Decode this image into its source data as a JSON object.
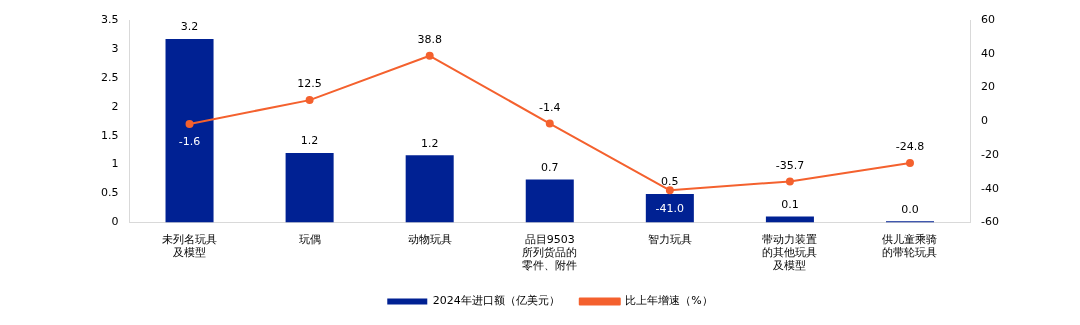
{
  "chart_data": {
    "type": "bar",
    "categories": [
      "未列名玩具及模型",
      "玩偶",
      "动物玩具",
      "品目9503所列货品的零件、附件",
      "智力玩具",
      "带动力装置的其他玩具及模型",
      "供儿童乘骑的带轮玩具"
    ],
    "series": [
      {
        "name": "2024年进口额（亿美元）",
        "color": "#002193",
        "values": [
          3.17,
          1.2,
          1.16,
          0.74,
          0.49,
          0.1,
          0.02
        ],
        "value_labels": [
          "3.2",
          "1.2",
          "1.2",
          "0.7",
          "0.5",
          "0.1",
          "0.0"
        ]
      },
      {
        "name": "比上年增速（%）",
        "type": "line",
        "axis": "y2",
        "color": "#f4612e",
        "marker": "circle",
        "values": [
          -1.6,
          12.5,
          38.8,
          -1.4,
          -41.0,
          -35.7,
          -24.8
        ],
        "value_labels": [
          "-1.6",
          "12.5",
          "38.8",
          "-1.4",
          "-41.0",
          "-35.7",
          "-24.8"
        ]
      }
    ],
    "ylim": [
      0,
      3.5
    ],
    "yticks": [
      0,
      0.5,
      1,
      1.5,
      2,
      2.5,
      3,
      3.5
    ],
    "y2lim": [
      -60,
      60
    ],
    "y2ticks": [
      -60,
      -40,
      -20,
      0,
      20,
      40,
      60
    ],
    "grid": false,
    "legend": "bottom"
  }
}
